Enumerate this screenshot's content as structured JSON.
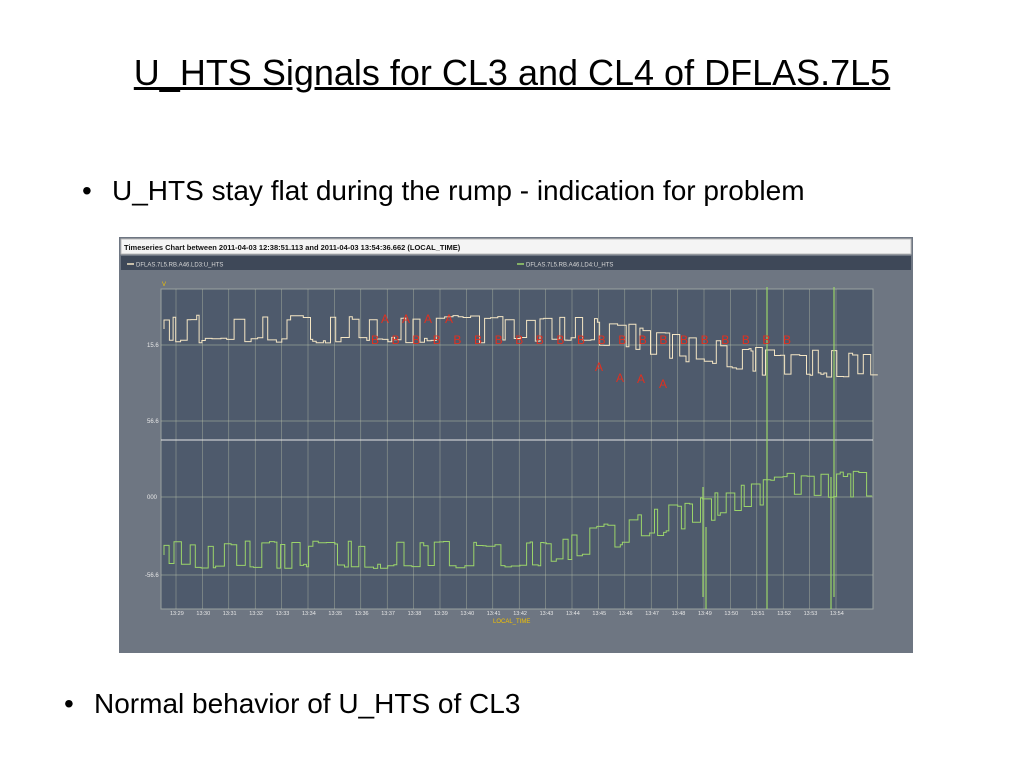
{
  "slide": {
    "title": "U_HTS Signals for CL3 and CL4 of DFLAS.7L5",
    "bullets": [
      "U_HTS stay flat during the rump - indication for problem",
      "Normal behavior of U_HTS of CL3"
    ]
  },
  "screenshot": {
    "window_title": "Timeseries Chart between 2011-04-03 12:38:51.113 and 2011-04-03 13:54:36.662 (LOCAL_TIME)",
    "legend": [
      "DFLAS.7L5.RB.A46.LD3:U_HTS",
      "DFLAS.7L5.RB.A46.LD4:U_HTS"
    ],
    "y_unit": "V",
    "upper_ticks": [
      "15.6",
      "56.6"
    ],
    "lower_ticks": [
      "000",
      "-56.6"
    ],
    "x_ticks": [
      "13:29",
      "13:30",
      "13:31",
      "13:32",
      "13:33",
      "13:34",
      "13:35",
      "13:36",
      "13:37",
      "13:38",
      "13:39",
      "13:40",
      "13:41",
      "13:42",
      "13:43",
      "13:44",
      "13:45",
      "13:46",
      "13:47",
      "13:48",
      "13:49",
      "13:50",
      "13:51",
      "13:52",
      "13:53",
      "13:54"
    ],
    "x_label": "LOCAL_TIME",
    "annotations_A": [
      "A",
      "A",
      "A",
      "A",
      "A",
      "A",
      "A",
      "A"
    ],
    "annotations_B": [
      "B",
      "B",
      "B",
      "B",
      "B",
      "B",
      "B",
      "B",
      "B",
      "B",
      "B",
      "B",
      "B",
      "B",
      "B",
      "B",
      "B",
      "B",
      "B",
      "B",
      "B"
    ],
    "colors": {
      "frame": "#6e7682",
      "plot_bg": "#4e5a6c",
      "grid": "#b8c0a8",
      "upper_signal": "#f5e6c4",
      "lower_signal": "#9bd46a",
      "annotation": "#e03020",
      "tick_text": "#e8e8e8",
      "x_label": "#f2c000"
    }
  }
}
